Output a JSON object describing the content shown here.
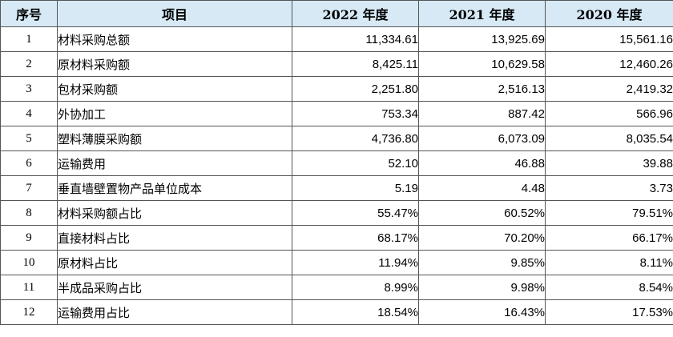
{
  "table": {
    "headers": [
      "序号",
      "项目",
      "2022 年度",
      "2021 年度",
      "2020 年度"
    ],
    "rows": [
      {
        "no": "1",
        "item": "材料采购总额",
        "y2022": "11,334.61",
        "y2021": "13,925.69",
        "y2020": "15,561.16"
      },
      {
        "no": "2",
        "item": "原材料采购额",
        "y2022": "8,425.11",
        "y2021": "10,629.58",
        "y2020": "12,460.26"
      },
      {
        "no": "3",
        "item": "包材采购额",
        "y2022": "2,251.80",
        "y2021": "2,516.13",
        "y2020": "2,419.32"
      },
      {
        "no": "4",
        "item": "外协加工",
        "y2022": "753.34",
        "y2021": "887.42",
        "y2020": "566.96"
      },
      {
        "no": "5",
        "item": "塑料薄膜采购额",
        "y2022": "4,736.80",
        "y2021": "6,073.09",
        "y2020": "8,035.54"
      },
      {
        "no": "6",
        "item": "运输费用",
        "y2022": "52.10",
        "y2021": "46.88",
        "y2020": "39.88"
      },
      {
        "no": "7",
        "item": "垂直墙壁置物产品单位成本",
        "y2022": "5.19",
        "y2021": "4.48",
        "y2020": "3.73"
      },
      {
        "no": "8",
        "item": "材料采购额占比",
        "y2022": "55.47%",
        "y2021": "60.52%",
        "y2020": "79.51%"
      },
      {
        "no": "9",
        "item": "直接材料占比",
        "y2022": "68.17%",
        "y2021": "70.20%",
        "y2020": "66.17%"
      },
      {
        "no": "10",
        "item": "原材料占比",
        "y2022": "11.94%",
        "y2021": "9.85%",
        "y2020": "8.11%"
      },
      {
        "no": "11",
        "item": "半成品采购占比",
        "y2022": "8.99%",
        "y2021": "9.98%",
        "y2020": "8.54%"
      },
      {
        "no": "12",
        "item": "运输费用占比",
        "y2022": "18.54%",
        "y2021": "16.43%",
        "y2020": "17.53%"
      }
    ]
  },
  "colors": {
    "header_background": "#d6e9f5",
    "border": "#555555"
  }
}
